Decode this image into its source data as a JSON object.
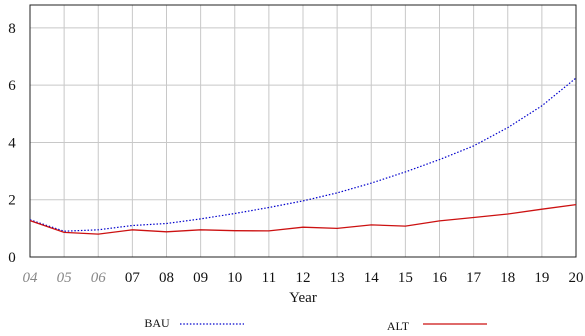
{
  "chart_data": {
    "type": "line",
    "title": "",
    "xlabel": "Year",
    "ylabel": "",
    "x": [
      "04",
      "05",
      "06",
      "07",
      "08",
      "09",
      "10",
      "11",
      "12",
      "13",
      "14",
      "15",
      "16",
      "17",
      "18",
      "19",
      "20"
    ],
    "x_italic": [
      "04",
      "05",
      "06"
    ],
    "ylim": [
      0,
      8.8
    ],
    "yticks": [
      0,
      2,
      4,
      6,
      8
    ],
    "grid": true,
    "legend_position": "bottom",
    "series": [
      {
        "name": "BAU",
        "style": "dotted",
        "color": "#0000cc",
        "values": [
          1.3,
          0.9,
          0.95,
          1.1,
          1.17,
          1.33,
          1.52,
          1.73,
          1.96,
          2.24,
          2.58,
          2.97,
          3.4,
          3.88,
          4.52,
          5.28,
          6.25
        ]
      },
      {
        "name": "ALT",
        "style": "solid",
        "color": "#cc1111",
        "values": [
          1.27,
          0.86,
          0.8,
          0.95,
          0.88,
          0.95,
          0.92,
          0.91,
          1.04,
          1.0,
          1.12,
          1.08,
          1.26,
          1.38,
          1.5,
          1.67,
          1.83
        ]
      }
    ]
  }
}
